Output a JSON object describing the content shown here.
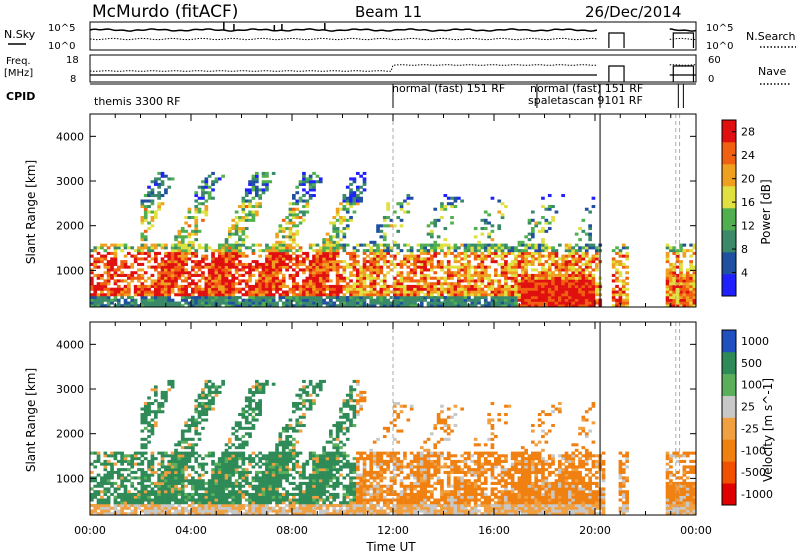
{
  "header": {
    "station": "McMurdo (fitACF)",
    "beam": "Beam 11",
    "date": "26/Dec/2014"
  },
  "noise_panel": {
    "left_label": "N.Sky",
    "right_label": "N.Search",
    "ticks_left": [
      "10^5",
      "10^0"
    ],
    "ticks_right": [
      "10^5",
      "10^0"
    ]
  },
  "freq_panel": {
    "left_label_1": "Freq.",
    "left_label_2": "[MHz]",
    "right_label": "Nave",
    "ticks_left": [
      "18",
      "8"
    ],
    "ticks_right": [
      "60",
      "0"
    ]
  },
  "cpid_panel": {
    "label": "CPID",
    "segments": [
      {
        "name": "themis 3300 RF",
        "start_hour": 0.0,
        "end_hour": 12.0
      },
      {
        "name": "normal (fast) 151 RF",
        "start_hour": 12.0,
        "end_hour": 17.7
      },
      {
        "name": "normal (fast) 151 RF",
        "start_hour": 17.7,
        "end_hour": 23.3
      },
      {
        "name": "spaletascan 9101 RF",
        "start_hour": 17.7,
        "end_hour": 23.3
      }
    ]
  },
  "colors": {
    "power": [
      "#2020ff",
      "#2050a0",
      "#3a8a6a",
      "#50b050",
      "#e0e040",
      "#f0a020",
      "#f06010",
      "#e01010"
    ],
    "velocity": [
      "#e00000",
      "#f05000",
      "#f08010",
      "#f0a040",
      "#c8c8c8",
      "#5ab05a",
      "#2e8b57",
      "#2050c0"
    ]
  },
  "chart_data": [
    {
      "type": "heatmap",
      "title": "",
      "xlabel": "",
      "ylabel": "Slant Range [km]",
      "xlim": [
        0,
        24
      ],
      "ylim": [
        180,
        4500
      ],
      "y_ticks": [
        "1000",
        "2000",
        "3000",
        "4000"
      ],
      "colorbar_label": "Power [dB]",
      "colorbar_ticks": [
        "4",
        "8",
        "12",
        "16",
        "20",
        "24",
        "28"
      ],
      "colorbar_range": [
        0,
        30
      ]
    },
    {
      "type": "heatmap",
      "title": "",
      "xlabel": "Time UT",
      "ylabel": "Slant Range [km]",
      "xlim": [
        0,
        24
      ],
      "ylim": [
        180,
        4500
      ],
      "x_ticks": [
        "00:00",
        "04:00",
        "08:00",
        "12:00",
        "16:00",
        "20:00",
        "00:00"
      ],
      "y_ticks": [
        "1000",
        "2000",
        "3000",
        "4000"
      ],
      "colorbar_label": "Velocity [m s^-1]",
      "colorbar_ticks": [
        "1000",
        "500",
        "100",
        "25",
        "-25",
        "-100",
        "-500",
        "-1000"
      ]
    }
  ]
}
